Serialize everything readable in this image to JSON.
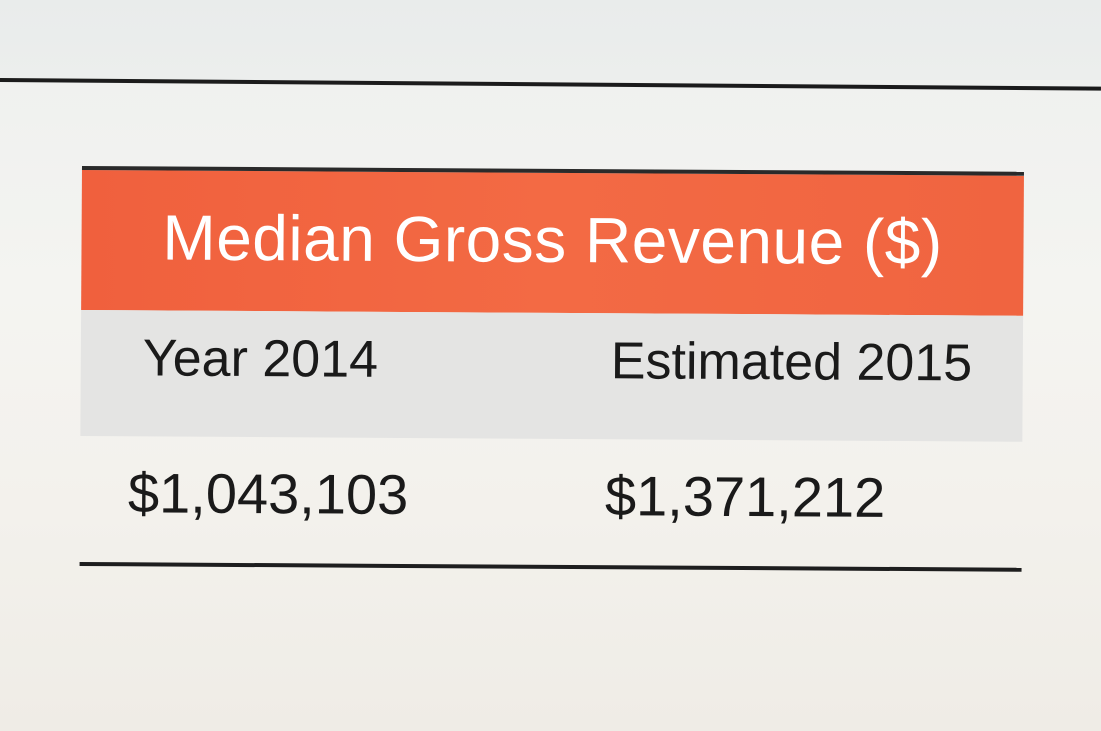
{
  "table": {
    "title": "Median Gross Revenue ($)",
    "columns": [
      "Year 2014",
      "Estimated 2015"
    ],
    "values": [
      "$1,043,103",
      "$1,371,212"
    ]
  },
  "colors": {
    "header_background": "#f26540",
    "header_text": "#ffffff",
    "subheader_background": "#e4e4e3",
    "body_text": "#1a1a1a",
    "rule": "#1e1e1e"
  }
}
